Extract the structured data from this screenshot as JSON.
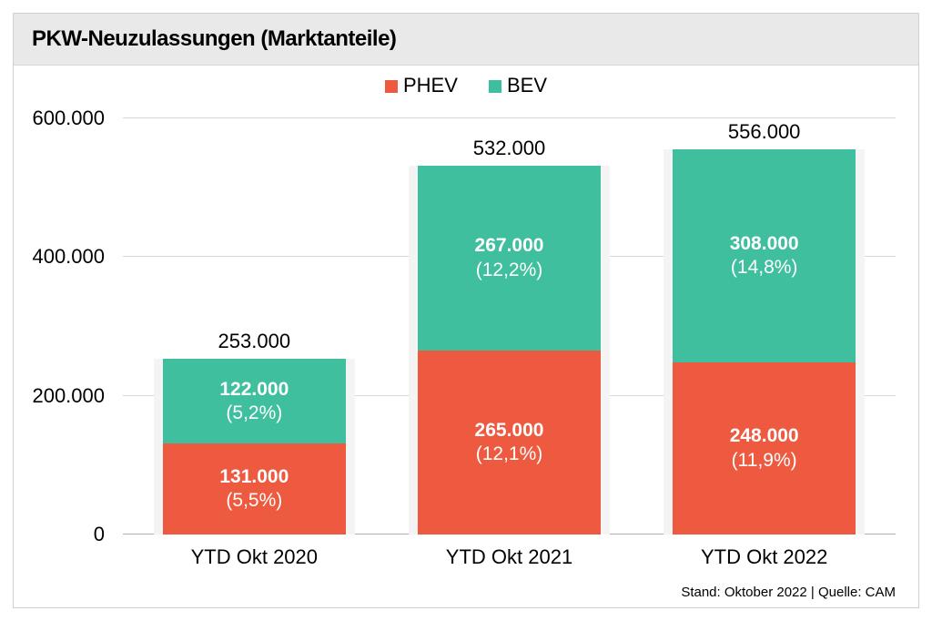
{
  "title": "PKW-Neuzulassungen (Marktanteile)",
  "chart": {
    "type": "stacked-bar",
    "ylim": [
      0,
      620000
    ],
    "yticks": [
      0,
      200000,
      400000,
      600000
    ],
    "ytick_labels": [
      "0",
      "200.000",
      "400.000",
      "600.000"
    ],
    "grid_color": "#d8d8d8",
    "background_color": "#ffffff",
    "panel_color": "#f4f4f4",
    "bar_group_width_pct": 26,
    "bar_positions_pct": [
      4,
      37,
      70
    ],
    "categories": [
      "YTD Okt 2020",
      "YTD Okt 2021",
      "YTD Okt 2022"
    ],
    "series": [
      {
        "key": "phev",
        "label": "PHEV",
        "color": "#ee5a40"
      },
      {
        "key": "bev",
        "label": "BEV",
        "color": "#3fbf9e"
      }
    ],
    "data": [
      {
        "total": 253000,
        "total_label": "253.000",
        "phev": {
          "v": 131000,
          "label": "131.000",
          "pct": "(5,5%)"
        },
        "bev": {
          "v": 122000,
          "label": "122.000",
          "pct": "(5,2%)"
        }
      },
      {
        "total": 532000,
        "total_label": "532.000",
        "phev": {
          "v": 265000,
          "label": "265.000",
          "pct": "(12,1%)"
        },
        "bev": {
          "v": 267000,
          "label": "267.000",
          "pct": "(12,2%)"
        }
      },
      {
        "total": 556000,
        "total_label": "556.000",
        "phev": {
          "v": 248000,
          "label": "248.000",
          "pct": "(11,9%)"
        },
        "bev": {
          "v": 308000,
          "label": "308.000",
          "pct": "(14,8%)"
        }
      }
    ],
    "label_fontsize": 22,
    "bar_label_fontsize": 21,
    "title_fontsize": 24,
    "value_text_color": "#ffffff"
  },
  "footer": "Stand: Oktober 2022 | Quelle: CAM"
}
